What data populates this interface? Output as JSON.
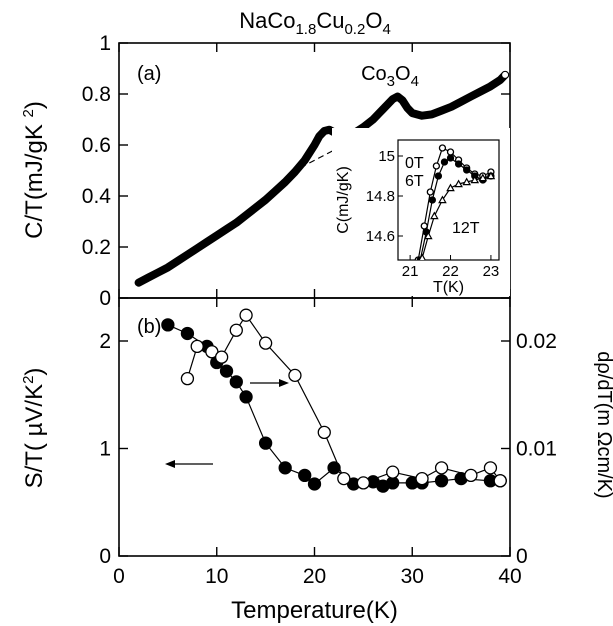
{
  "chart_data": [
    {
      "panel": "(a)",
      "type": "line",
      "title": "NaCo1.8Cu0.2O4",
      "title_parts": [
        [
          "NaCo",
          0
        ],
        [
          "1.8",
          1
        ],
        [
          "Cu",
          0
        ],
        [
          "0.2",
          1
        ],
        [
          "O",
          0
        ],
        [
          "4",
          1
        ]
      ],
      "xlabel": "",
      "ylabel": "C/T(mJ/gK 2)",
      "ylabel_parts": [
        [
          "C/T(mJ/gK ",
          0
        ],
        [
          "2",
          2
        ],
        [
          ")",
          0
        ]
      ],
      "xlim": [
        0,
        40
      ],
      "ylim": [
        0,
        1
      ],
      "xticks": [
        "0",
        "10",
        "20",
        "30",
        "40"
      ],
      "yticks": [
        "0",
        "0.2",
        "0.4",
        "0.6",
        "0.8",
        "1"
      ],
      "annotation": "Co3O4",
      "annotation_parts": [
        [
          "Co",
          0
        ],
        [
          "3",
          1
        ],
        [
          "O",
          0
        ],
        [
          "4",
          1
        ]
      ],
      "series": [
        {
          "style": "thick-points",
          "x": [
            2,
            3,
            4,
            5,
            6,
            7,
            8,
            9,
            10,
            11,
            12,
            13,
            14,
            15,
            16,
            17,
            18,
            19,
            20,
            20.5,
            21,
            21.5,
            22,
            22.5,
            23,
            24,
            25,
            26,
            27,
            28,
            28.5,
            29,
            29.5,
            30,
            31,
            32,
            33,
            34,
            35,
            36,
            37,
            38,
            39,
            39.5
          ],
          "y": [
            0.06,
            0.08,
            0.1,
            0.12,
            0.145,
            0.17,
            0.195,
            0.22,
            0.245,
            0.27,
            0.295,
            0.325,
            0.355,
            0.385,
            0.42,
            0.455,
            0.495,
            0.54,
            0.6,
            0.635,
            0.655,
            0.66,
            0.65,
            0.635,
            0.63,
            0.645,
            0.67,
            0.7,
            0.74,
            0.78,
            0.79,
            0.775,
            0.745,
            0.725,
            0.715,
            0.72,
            0.735,
            0.75,
            0.77,
            0.79,
            0.81,
            0.83,
            0.855,
            0.875
          ]
        },
        {
          "style": "dashed-baseline",
          "x": [
            17,
            19,
            21,
            23,
            25,
            27
          ],
          "y": [
            0.46,
            0.52,
            0.56,
            0.6,
            0.63,
            0.66
          ]
        }
      ],
      "inset": {
        "xlabel": "T(K)",
        "ylabel": "C(mJ/gK)",
        "xlim": [
          20.7,
          23.2
        ],
        "ylim": [
          14.48,
          15.08
        ],
        "xticks": [
          "21",
          "22",
          "23"
        ],
        "yticks": [
          "14.6",
          "14.8",
          "15"
        ],
        "series": [
          {
            "name": "0T",
            "marker": "open-circle",
            "x": [
              21.2,
              21.35,
              21.5,
              21.65,
              21.8,
              22.0,
              22.2,
              22.4,
              22.6,
              22.8,
              23.0
            ],
            "y": [
              14.48,
              14.65,
              14.82,
              14.95,
              15.04,
              15.02,
              14.98,
              14.94,
              14.91,
              14.9,
              14.92
            ]
          },
          {
            "name": "6T",
            "marker": "filled-circle",
            "x": [
              21.25,
              21.4,
              21.55,
              21.7,
              21.85,
              22.0,
              22.2,
              22.4,
              22.6,
              22.8,
              23.0
            ],
            "y": [
              14.48,
              14.62,
              14.78,
              14.9,
              14.97,
              14.99,
              14.96,
              14.93,
              14.9,
              14.88,
              14.9
            ]
          },
          {
            "name": "12T",
            "marker": "open-triangle",
            "x": [
              21.3,
              21.45,
              21.6,
              21.8,
              22.0,
              22.2,
              22.4,
              22.6,
              22.8,
              23.0
            ],
            "y": [
              14.49,
              14.6,
              14.7,
              14.78,
              14.84,
              14.86,
              14.87,
              14.88,
              14.89,
              14.9
            ]
          }
        ]
      }
    },
    {
      "panel": "(b)",
      "type": "scatter",
      "xlabel": "Temperature(K)",
      "ylabel": "S/T( µV/K2)",
      "ylabel_parts": [
        [
          "S/T( µV/K",
          0
        ],
        [
          "2",
          2
        ],
        [
          ")",
          0
        ]
      ],
      "ylabel_right": "dρ/dT(m Ωcm/K)",
      "xlim": [
        0,
        40
      ],
      "ylim": [
        0,
        2.4
      ],
      "ylim_right": [
        0,
        0.024
      ],
      "xticks": [
        "0",
        "10",
        "20",
        "30",
        "40"
      ],
      "yticks": [
        "0",
        "1",
        "2"
      ],
      "yticks_right": [
        "0",
        "0.01",
        "0.02"
      ],
      "series": [
        {
          "axis": "left",
          "marker": "filled-circle",
          "x": [
            5,
            7,
            9,
            10,
            11,
            12,
            13,
            15,
            17,
            19,
            20,
            22,
            24,
            26,
            27,
            28,
            30,
            31,
            33,
            35,
            38,
            39
          ],
          "y": [
            2.15,
            2.07,
            1.95,
            1.8,
            1.72,
            1.62,
            1.48,
            1.05,
            0.82,
            0.75,
            0.67,
            0.82,
            0.67,
            0.69,
            0.65,
            0.68,
            0.68,
            0.68,
            0.7,
            0.72,
            0.7,
            0.7
          ]
        },
        {
          "axis": "right",
          "marker": "open-circle",
          "x": [
            7,
            8,
            9.5,
            10.5,
            12,
            13,
            15,
            18,
            21,
            23,
            25,
            28,
            31,
            33,
            36,
            38,
            39
          ],
          "y": [
            0.0165,
            0.0195,
            0.019,
            0.0185,
            0.021,
            0.0224,
            0.0198,
            0.0168,
            0.0115,
            0.0072,
            0.0068,
            0.0078,
            0.0072,
            0.0082,
            0.0075,
            0.0082,
            0.007
          ]
        }
      ]
    }
  ]
}
